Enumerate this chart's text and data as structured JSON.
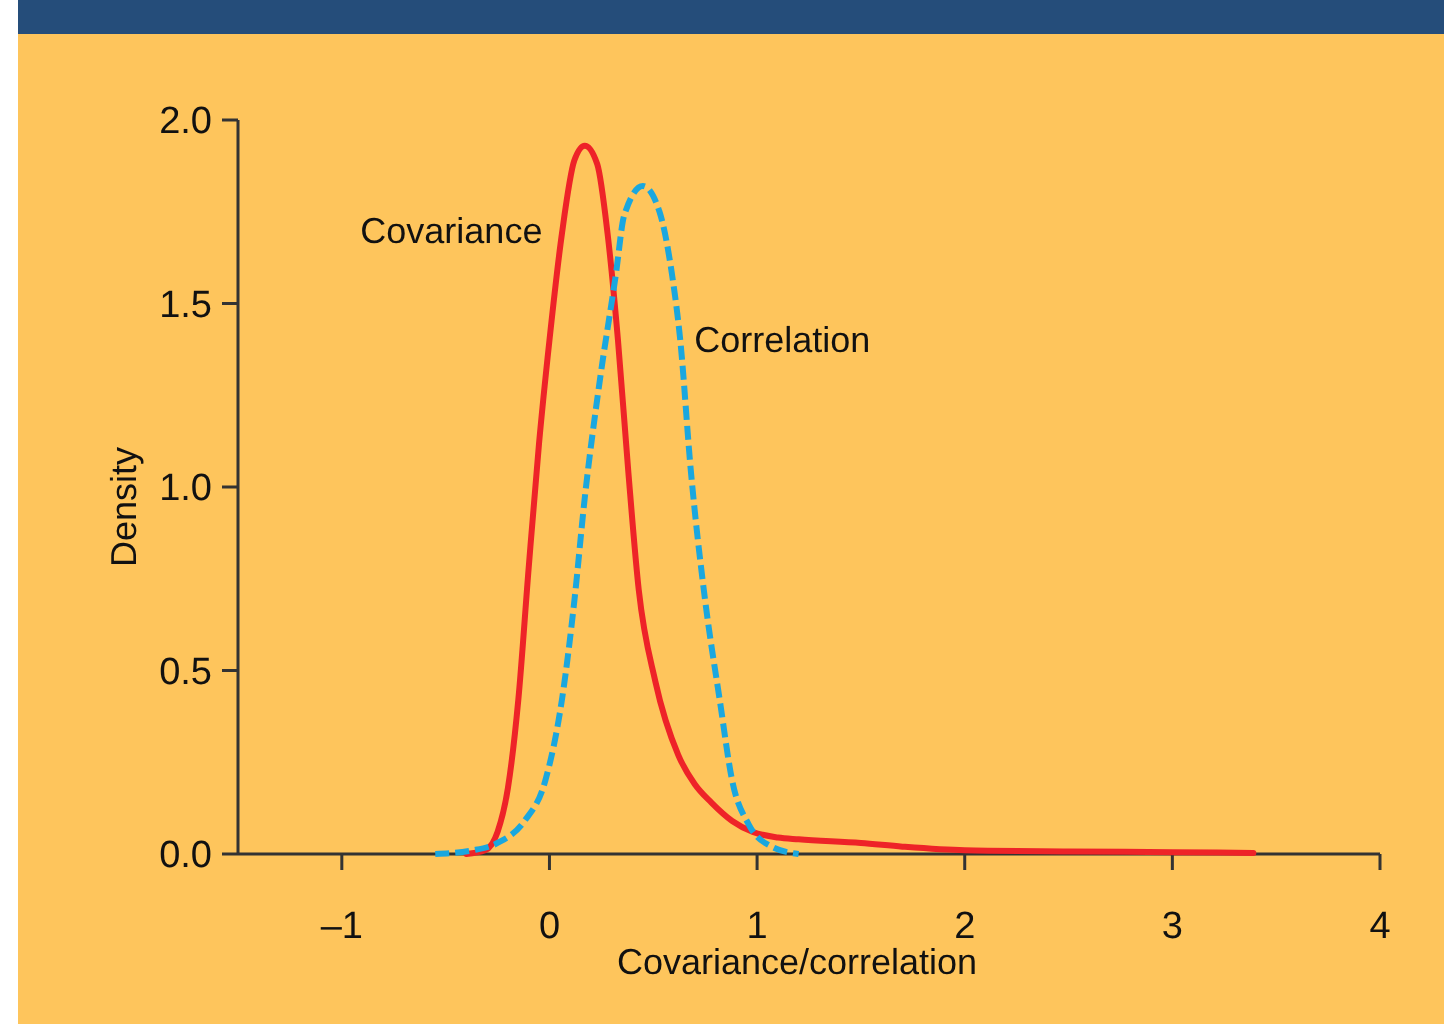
{
  "chart_data": {
    "type": "line",
    "xlabel": "Covariance/correlation",
    "ylabel": "Density",
    "xlim": [
      -1.5,
      4
    ],
    "ylim": [
      0,
      2
    ],
    "xticks": [
      {
        "value": -1,
        "label": "–1"
      },
      0,
      1,
      2,
      3,
      4
    ],
    "yticks": [
      {
        "value": 0,
        "label": "0.0"
      },
      {
        "value": 0.5,
        "label": "0.5"
      },
      {
        "value": 1,
        "label": "1.0"
      },
      {
        "value": 1.5,
        "label": "1.5"
      },
      {
        "value": 2,
        "label": "2.0"
      }
    ],
    "series": [
      {
        "name": "Covariance",
        "color": "#ee2328",
        "line_style": "solid",
        "x": [
          -0.4,
          -0.31,
          -0.25,
          -0.2,
          -0.15,
          -0.1,
          -0.05,
          0,
          0.06,
          0.12,
          0.17,
          0.23,
          0.28,
          0.33,
          0.38,
          0.43,
          0.51,
          0.62,
          0.7,
          0.78,
          0.88,
          0.98,
          1.1,
          1.2,
          1.5,
          1.7,
          2,
          2.5,
          3,
          3.39
        ],
        "values": [
          0,
          0.01,
          0.06,
          0.18,
          0.42,
          0.78,
          1.12,
          1.4,
          1.69,
          1.89,
          1.93,
          1.88,
          1.69,
          1.4,
          1.04,
          0.72,
          0.47,
          0.27,
          0.19,
          0.14,
          0.09,
          0.06,
          0.045,
          0.04,
          0.03,
          0.02,
          0.01,
          0.007,
          0.005,
          0.003
        ]
      },
      {
        "name": "Correlation",
        "color": "#1aa7df",
        "line_style": "dashed",
        "x": [
          -0.55,
          -0.37,
          -0.25,
          -0.12,
          -0.02,
          0.06,
          0.12,
          0.17,
          0.24,
          0.32,
          0.36,
          0.45,
          0.53,
          0.59,
          0.63,
          0.68,
          0.75,
          0.82,
          0.88,
          0.96,
          1.07,
          1.2
        ],
        "values": [
          0,
          0.01,
          0.03,
          0.09,
          0.2,
          0.42,
          0.69,
          0.97,
          1.28,
          1.58,
          1.74,
          1.82,
          1.75,
          1.58,
          1.4,
          1.05,
          0.69,
          0.42,
          0.2,
          0.08,
          0.02,
          0
        ]
      }
    ]
  }
}
